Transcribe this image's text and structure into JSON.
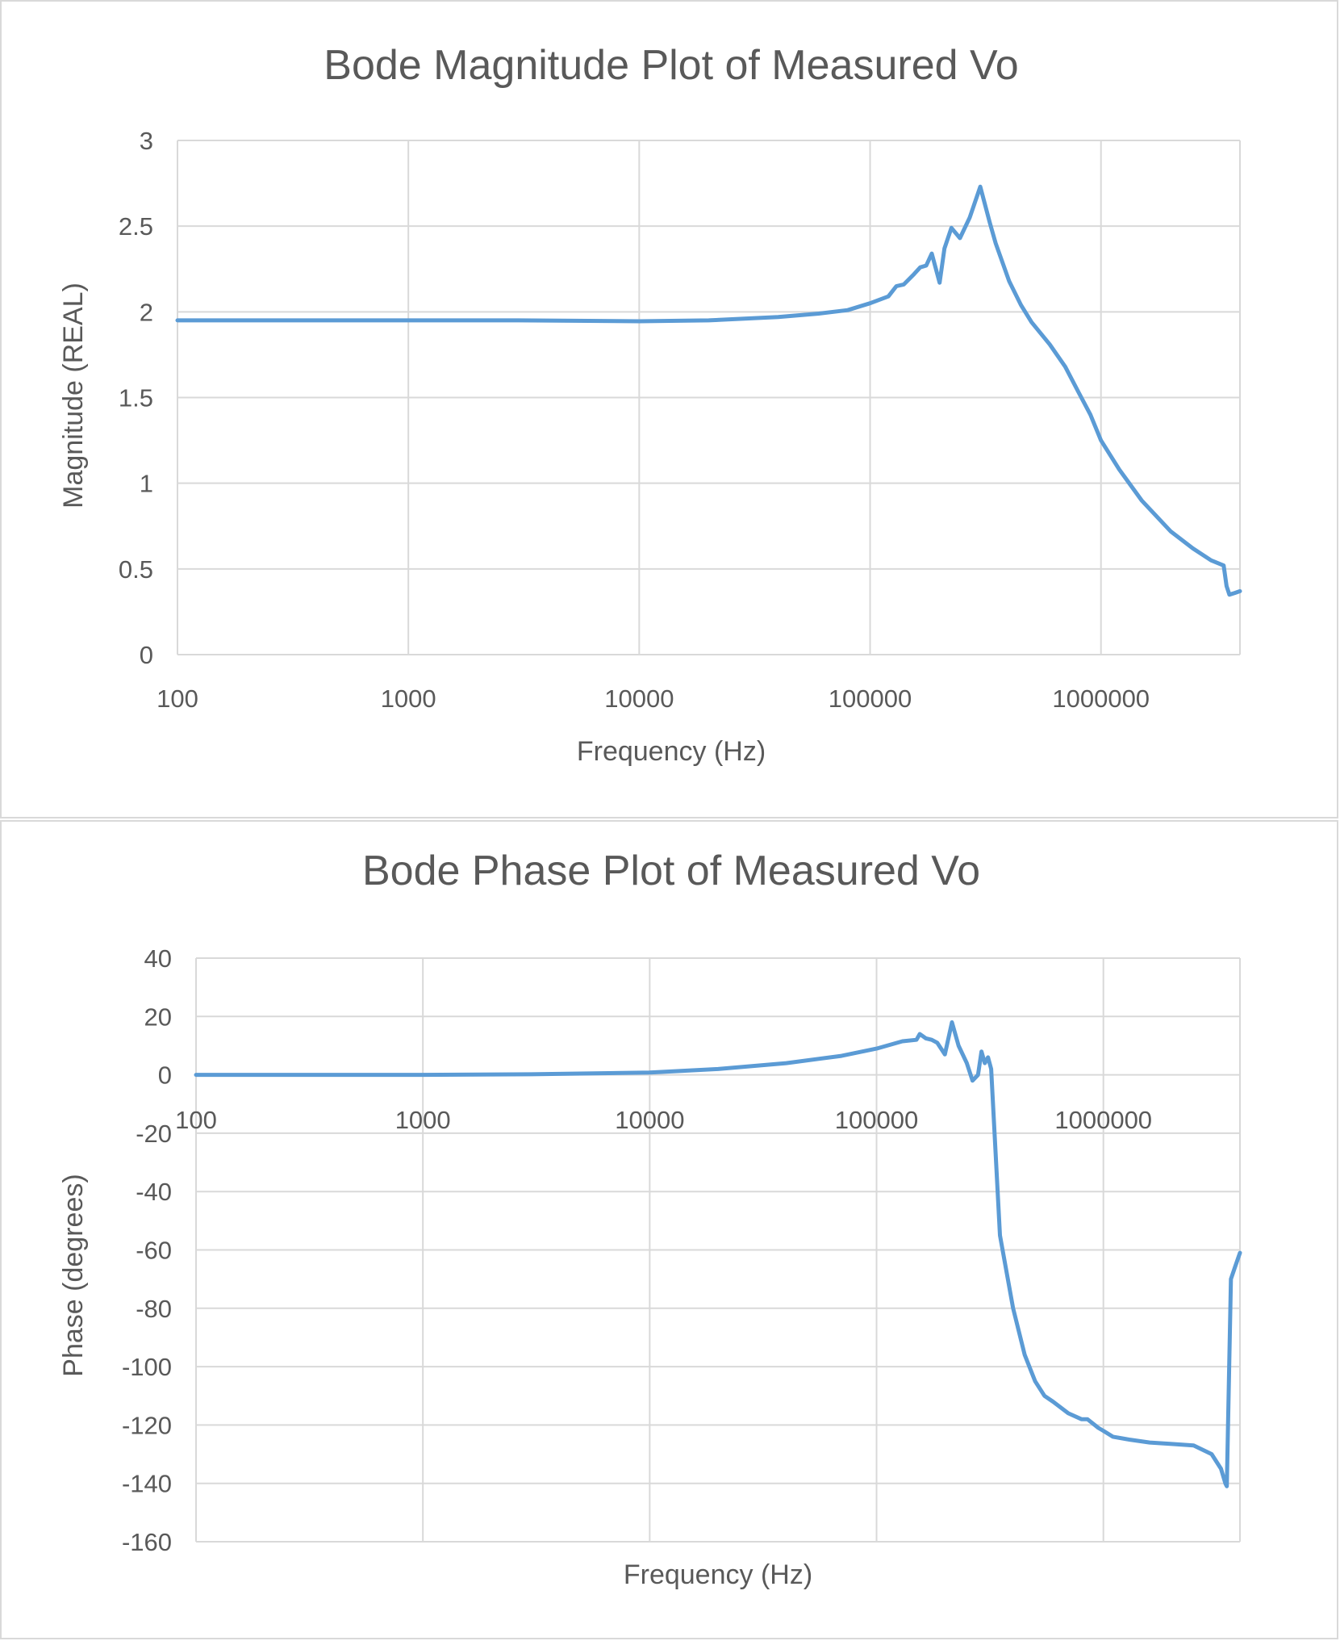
{
  "chart_data": [
    {
      "type": "line",
      "title": "Bode Magnitude Plot of Measured Vo",
      "xlabel": "Frequency (Hz)",
      "ylabel": "Magnitude (REAL)",
      "xscale": "log",
      "xlim": [
        100,
        4000000
      ],
      "ylim": [
        0,
        3
      ],
      "x_ticks": [
        100,
        1000,
        10000,
        100000,
        1000000
      ],
      "x_tick_labels": [
        "100",
        "1000",
        "10000",
        "100000",
        "1000000"
      ],
      "y_ticks": [
        0,
        0.5,
        1,
        1.5,
        2,
        2.5,
        3
      ],
      "y_tick_labels": [
        "0",
        "0.5",
        "1",
        "1.5",
        "2",
        "2.5",
        "3"
      ],
      "grid": true,
      "color": "#5b9bd5",
      "x": [
        100,
        300,
        1000,
        3000,
        10000,
        20000,
        40000,
        60000,
        80000,
        100000,
        120000,
        130000,
        140000,
        155000,
        165000,
        175000,
        185000,
        200000,
        210000,
        225000,
        245000,
        270000,
        300000,
        330000,
        350000,
        400000,
        450000,
        500000,
        600000,
        700000,
        800000,
        900000,
        1000000,
        1200000,
        1500000,
        2000000,
        2500000,
        3000000,
        3400000,
        3500000,
        3600000,
        3800000,
        4000000
      ],
      "y": [
        1.95,
        1.95,
        1.95,
        1.95,
        1.945,
        1.95,
        1.97,
        1.99,
        2.01,
        2.05,
        2.09,
        2.15,
        2.16,
        2.22,
        2.26,
        2.27,
        2.34,
        2.17,
        2.37,
        2.49,
        2.43,
        2.55,
        2.73,
        2.52,
        2.4,
        2.18,
        2.04,
        1.94,
        1.81,
        1.68,
        1.53,
        1.4,
        1.25,
        1.08,
        0.9,
        0.72,
        0.62,
        0.55,
        0.52,
        0.4,
        0.35,
        0.36,
        0.37
      ]
    },
    {
      "type": "line",
      "title": "Bode Phase Plot of Measured Vo",
      "xlabel": "Frequency (Hz)",
      "ylabel": "Phase (degrees)",
      "xscale": "log",
      "xlim": [
        100,
        4000000
      ],
      "ylim": [
        -160,
        40
      ],
      "x_ticks": [
        100,
        1000,
        10000,
        100000,
        1000000
      ],
      "x_tick_labels": [
        "100",
        "1000",
        "10000",
        "100000",
        "1000000"
      ],
      "y_ticks": [
        -160,
        -140,
        -120,
        -100,
        -80,
        -60,
        -40,
        -20,
        0,
        20,
        40
      ],
      "y_tick_labels": [
        "-160",
        "-140",
        "-120",
        "-100",
        "-80",
        "-60",
        "-40",
        "-20",
        "0",
        "20",
        "40"
      ],
      "grid": true,
      "color": "#5b9bd5",
      "x": [
        100,
        1000,
        3000,
        10000,
        20000,
        40000,
        70000,
        100000,
        130000,
        150000,
        155000,
        165000,
        175000,
        185000,
        200000,
        215000,
        230000,
        250000,
        265000,
        280000,
        290000,
        300000,
        310000,
        320000,
        350000,
        400000,
        450000,
        500000,
        550000,
        600000,
        700000,
        800000,
        850000,
        950000,
        1000000,
        1100000,
        1300000,
        1600000,
        2000000,
        2500000,
        3000000,
        3300000,
        3450000,
        3500000,
        3650000,
        3800000,
        4000000
      ],
      "y": [
        0,
        0,
        0.2,
        0.8,
        2,
        4,
        6.5,
        9,
        11.5,
        12,
        14,
        12.5,
        12,
        11,
        7,
        18,
        10,
        4,
        -2,
        0,
        8,
        4,
        6,
        2,
        -55,
        -80,
        -96,
        -105,
        -110,
        -112,
        -116,
        -118,
        -118,
        -121,
        -122,
        -124,
        -125,
        -126,
        -126.5,
        -127,
        -130,
        -135,
        -140,
        -141,
        -70,
        -66,
        -61
      ]
    }
  ]
}
